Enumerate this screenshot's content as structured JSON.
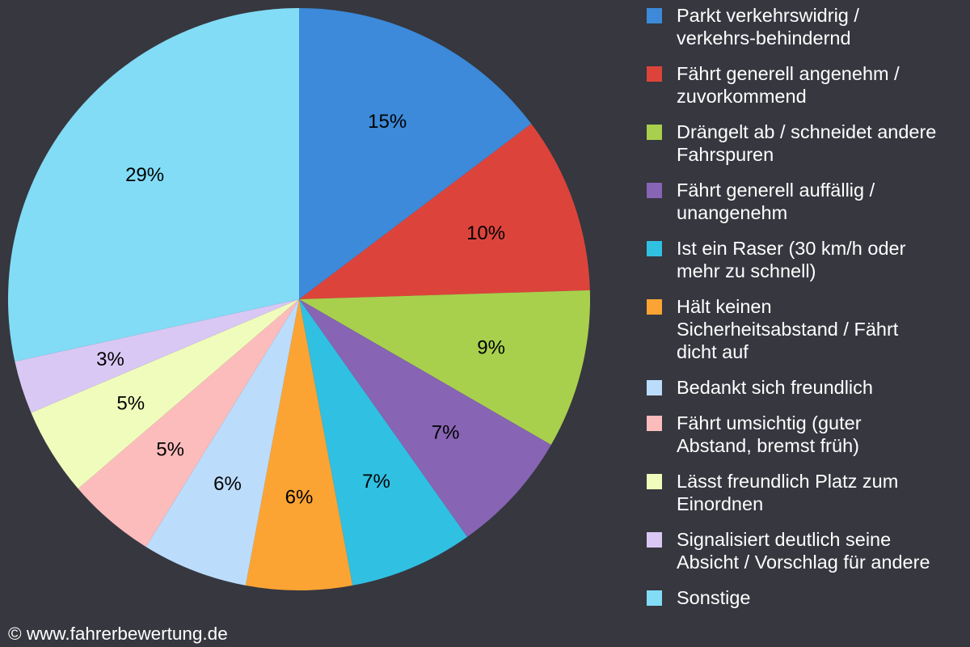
{
  "chart_data": {
    "type": "pie",
    "slices": [
      {
        "legend": "Parkt verkehrswidrig /\nverkehrs-behindernd",
        "value": 15,
        "label": "15%",
        "color": "#3c8ad9"
      },
      {
        "legend": "Fährt generell angenehm /\nzuvorkommend",
        "value": 10,
        "label": "10%",
        "color": "#dc443b"
      },
      {
        "legend": "Drängelt ab / schneidet andere\nFahrspuren",
        "value": 9,
        "label": "9%",
        "color": "#a8d04d"
      },
      {
        "legend": "Fährt generell auffällig /\nunangenehm",
        "value": 7,
        "label": "7%",
        "color": "#8764b4"
      },
      {
        "legend": "Ist ein Raser (30 km/h oder\nmehr zu schnell)",
        "value": 7,
        "label": "7%",
        "color": "#30c0e2"
      },
      {
        "legend": "Hält keinen\nSicherheitsabstand / Fährt\ndicht auf",
        "value": 6,
        "label": "6%",
        "color": "#fca433"
      },
      {
        "legend": "Bedankt sich freundlich",
        "value": 6,
        "label": "6%",
        "color": "#bcdcfc"
      },
      {
        "legend": "Fährt umsichtig (guter\nAbstand, bremst früh)",
        "value": 5,
        "label": "5%",
        "color": "#fcbcbc"
      },
      {
        "legend": "Lässt freundlich Platz zum\nEinordnen",
        "value": 5,
        "label": "5%",
        "color": "#f0fcbc"
      },
      {
        "legend": "Signalisiert deutlich seine\nAbsicht / Vorschlag für andere",
        "value": 3,
        "label": "3%",
        "color": "#d9c8f4"
      },
      {
        "legend": "Sonstige",
        "value": 29,
        "label": "29%",
        "color": "#82dcf6"
      }
    ],
    "legend_position": "right"
  },
  "footer": {
    "copyright": "© www.fahrerbewertung.de"
  }
}
